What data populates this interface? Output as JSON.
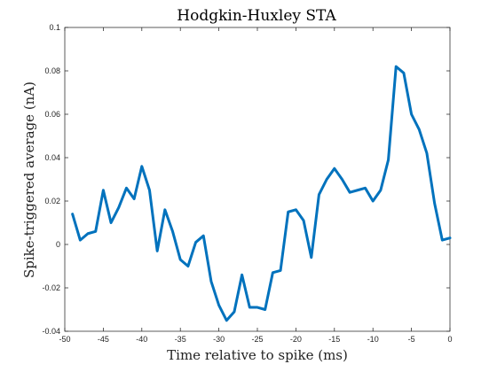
{
  "chart_data": {
    "type": "line",
    "title": "Hodgkin-Huxley STA",
    "xlabel": "Time relative to spike (ms)",
    "ylabel": "Spike-triggered average (nA)",
    "xlim": [
      -50,
      0
    ],
    "ylim": [
      -0.04,
      0.1
    ],
    "xticks": [
      -50,
      -45,
      -40,
      -35,
      -30,
      -25,
      -20,
      -15,
      -10,
      -5,
      0
    ],
    "yticks": [
      -0.04,
      -0.02,
      0,
      0.02,
      0.04,
      0.06,
      0.08,
      0.1
    ],
    "xtick_labels": [
      "-50",
      "-45",
      "-40",
      "-35",
      "-30",
      "-25",
      "-20",
      "-15",
      "-10",
      "-5",
      "0"
    ],
    "ytick_labels": [
      "-0.04",
      "-0.02",
      "0",
      "0.02",
      "0.04",
      "0.06",
      "0.08",
      "0.1"
    ],
    "grid": false,
    "line_color": "#0072BD",
    "series": [
      {
        "x": [
          -49,
          -48,
          -47,
          -46,
          -45,
          -44,
          -43,
          -42,
          -41,
          -40,
          -39,
          -38,
          -37,
          -36,
          -35,
          -34,
          -33,
          -32,
          -31,
          -30,
          -29,
          -28,
          -27,
          -26,
          -25,
          -24,
          -23,
          -22,
          -21,
          -20,
          -19,
          -18,
          -17,
          -16,
          -15,
          -14,
          -13,
          -12,
          -11,
          -10,
          -9,
          -8,
          -7,
          -6,
          -5,
          -4,
          -3,
          -2,
          -1,
          0
        ],
        "values": [
          0.014,
          0.002,
          0.005,
          0.006,
          0.025,
          0.01,
          0.017,
          0.026,
          0.021,
          0.036,
          0.025,
          -0.003,
          0.016,
          0.006,
          -0.007,
          -0.01,
          0.001,
          0.004,
          -0.017,
          -0.028,
          -0.035,
          -0.031,
          -0.014,
          -0.029,
          -0.029,
          -0.03,
          -0.013,
          -0.012,
          0.015,
          0.016,
          0.011,
          -0.006,
          0.023,
          0.03,
          0.035,
          0.03,
          0.024,
          0.025,
          0.026,
          0.02,
          0.025,
          0.039,
          0.082,
          0.079,
          0.06,
          0.053,
          0.042,
          0.019,
          0.002,
          0.003
        ]
      }
    ]
  }
}
